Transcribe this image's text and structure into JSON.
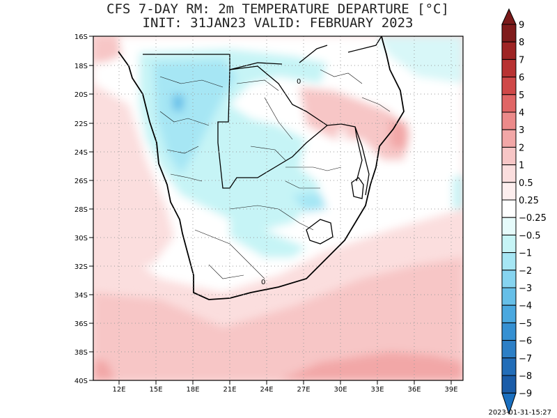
{
  "title_line1": "CFS 7-DAY RM: 2m TEMPERATURE DEPARTURE [°C]",
  "title_line2": "INIT: 31JAN23 VALID: FEBRUARY 2023",
  "lat_labels": [
    "16S",
    "18S",
    "20S",
    "22S",
    "24S",
    "26S",
    "28S",
    "30S",
    "32S",
    "34S",
    "36S",
    "38S",
    "40S"
  ],
  "lon_labels": [
    "12E",
    "15E",
    "18E",
    "21E",
    "24E",
    "27E",
    "30E",
    "33E",
    "36E",
    "39E"
  ],
  "contour_labels": [
    "0",
    "0"
  ],
  "colorbar": {
    "labels": [
      "9",
      "8",
      "7",
      "6",
      "5",
      "4",
      "3",
      "2",
      "1",
      "0.5",
      "0.25",
      "−0.25",
      "−0.5",
      "−1",
      "−2",
      "−3",
      "−4",
      "−5",
      "−6",
      "−7",
      "−8",
      "−9"
    ],
    "colors": [
      "#7f1b1b",
      "#9e2424",
      "#b83232",
      "#cf4848",
      "#e06666",
      "#ec8a8a",
      "#f2a7a7",
      "#f7c6c6",
      "#fbdede",
      "#fdeeee",
      "#ffffff",
      "#e6fbfb",
      "#c6f4f6",
      "#a6e6f4",
      "#86d4f0",
      "#66bfe8",
      "#4aa8df",
      "#3590d2",
      "#2c7fc6",
      "#226db8",
      "#1a5ca8"
    ],
    "top_color": "#7a1a1a",
    "bottom_color": "#1a6fbf"
  },
  "timestamp": "2023-01-31-15:27"
}
